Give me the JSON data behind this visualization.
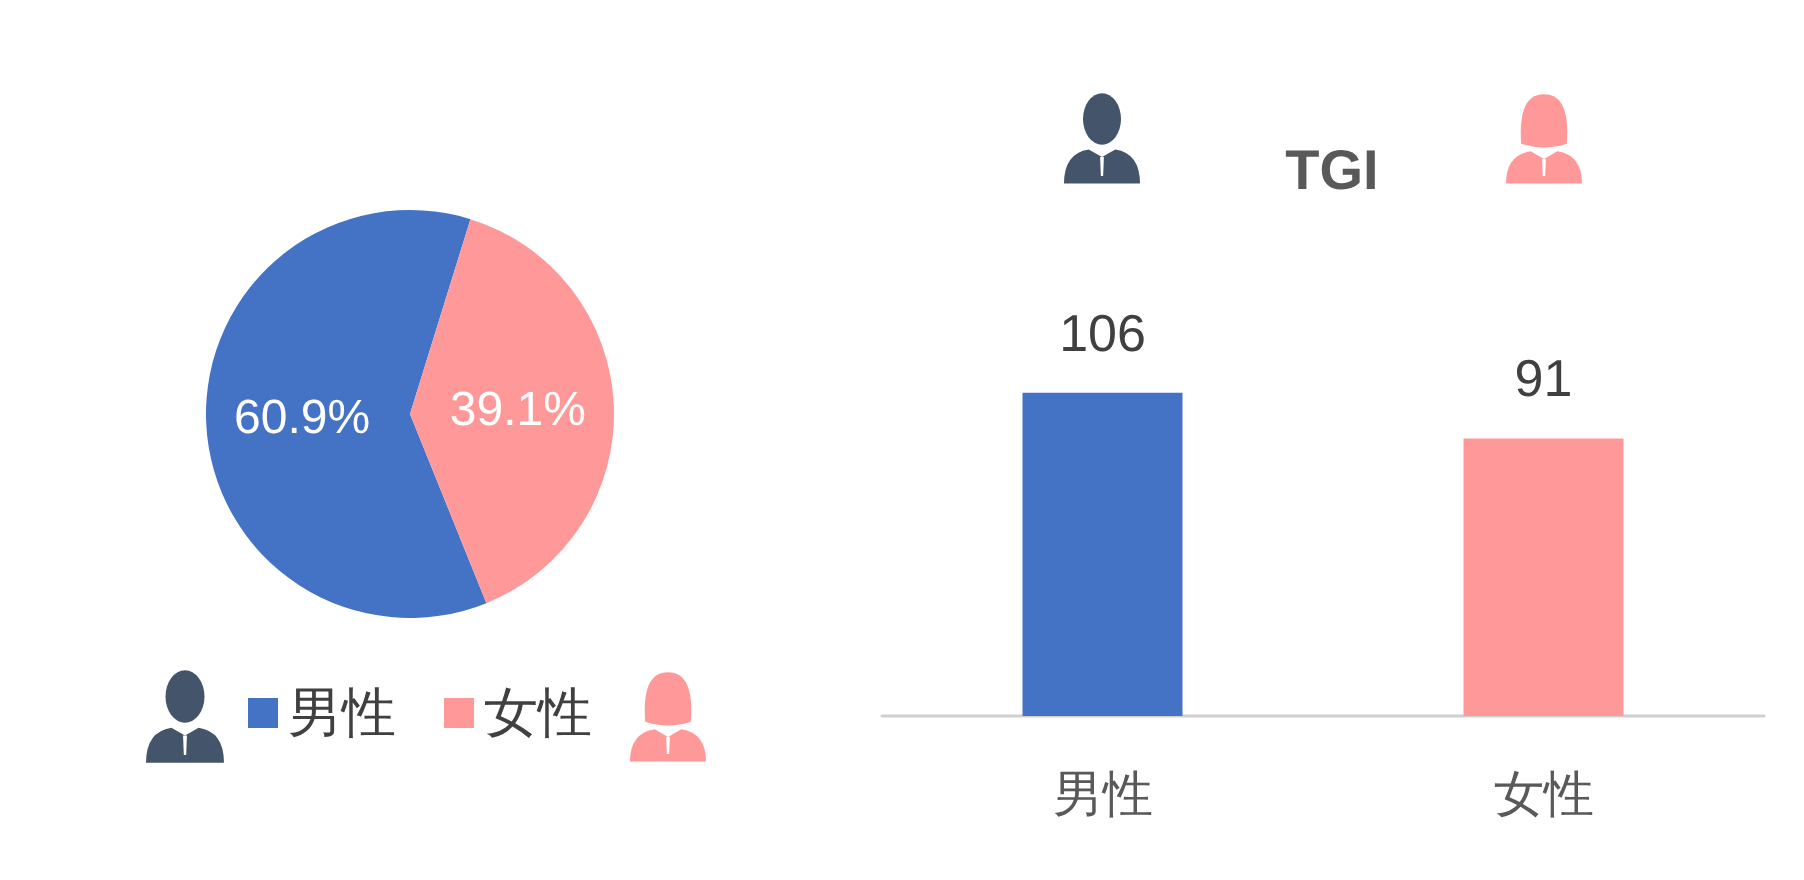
{
  "chart_data": [
    {
      "type": "pie",
      "categories": [
        "男性",
        "女性"
      ],
      "values": [
        60.9,
        39.1
      ],
      "colors": [
        "#4472c4",
        "#ff9999"
      ],
      "value_labels": [
        "60.9%",
        "39.1%"
      ],
      "legend": "bottom"
    },
    {
      "type": "bar",
      "title": "TGI",
      "categories": [
        "男性",
        "女性"
      ],
      "values": [
        106,
        91
      ],
      "colors": [
        "#4472c4",
        "#ff9999"
      ],
      "data_labels": true,
      "tick_labels": "x"
    }
  ]
}
